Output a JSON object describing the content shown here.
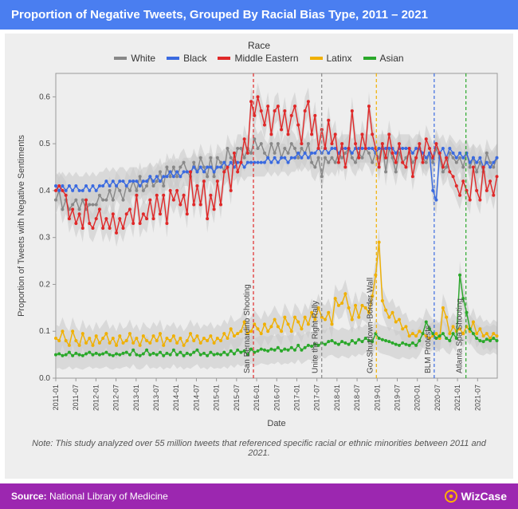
{
  "header": {
    "title": "Proportion of Negative Tweets, Grouped By Racial Bias Type, 2011 – 2021"
  },
  "legend": {
    "title": "Race",
    "items": [
      {
        "label": "White",
        "color": "#888888"
      },
      {
        "label": "Black",
        "color": "#3a6ae0"
      },
      {
        "label": "Middle Eastern",
        "color": "#e02828"
      },
      {
        "label": "Latinx",
        "color": "#f0b000"
      },
      {
        "label": "Asian",
        "color": "#2aa82a"
      }
    ]
  },
  "chart": {
    "type": "line-scatter",
    "background_color": "#eeeeee",
    "plot_bg": "#eeeeee",
    "band_color": "#c9c9c9",
    "band_opacity": 0.55,
    "grid_border": "#999999",
    "xlabel": "Date",
    "ylabel": "Proportion of Tweets with Negative Sentiments",
    "label_fontsize": 11,
    "ylim": [
      0.0,
      0.65
    ],
    "yticks": [
      0.0,
      0.1,
      0.2,
      0.3,
      0.4,
      0.5,
      0.6
    ],
    "x_start": 2011.0,
    "x_end": 2021.99,
    "xtick_dates": [
      "2011-01",
      "2011-07",
      "2012-01",
      "2012-07",
      "2013-01",
      "2013-07",
      "2014-01",
      "2014-07",
      "2015-01",
      "2015-07",
      "2016-01",
      "2016-07",
      "2017-01",
      "2017-07",
      "2018-01",
      "2018-07",
      "2019-01",
      "2019-07",
      "2020-01",
      "2020-07",
      "2021-01",
      "2021-07"
    ],
    "xtick_vals": [
      2011.0,
      2011.5,
      2012.0,
      2012.5,
      2013.0,
      2013.5,
      2014.0,
      2014.5,
      2015.0,
      2015.5,
      2016.0,
      2016.5,
      2017.0,
      2017.5,
      2018.0,
      2018.5,
      2019.0,
      2019.5,
      2020.0,
      2020.5,
      2021.0,
      2021.5
    ],
    "marker_radius": 2.0,
    "line_width": 1.4,
    "band_halfwidth": 0.03,
    "series": {
      "white": {
        "color": "#888888",
        "y": [
          0.38,
          0.4,
          0.36,
          0.38,
          0.36,
          0.37,
          0.38,
          0.36,
          0.38,
          0.36,
          0.37,
          0.37,
          0.37,
          0.39,
          0.38,
          0.38,
          0.4,
          0.38,
          0.41,
          0.4,
          0.38,
          0.41,
          0.4,
          0.42,
          0.4,
          0.43,
          0.4,
          0.41,
          0.43,
          0.41,
          0.42,
          0.44,
          0.41,
          0.45,
          0.43,
          0.45,
          0.43,
          0.45,
          0.46,
          0.44,
          0.43,
          0.46,
          0.44,
          0.47,
          0.45,
          0.43,
          0.47,
          0.43,
          0.47,
          0.46,
          0.44,
          0.49,
          0.47,
          0.46,
          0.49,
          0.49,
          0.47,
          0.49,
          0.48,
          0.51,
          0.49,
          0.5,
          0.48,
          0.47,
          0.5,
          0.48,
          0.5,
          0.47,
          0.49,
          0.48,
          0.5,
          0.49,
          0.47,
          0.49,
          0.48,
          0.5,
          0.46,
          0.45,
          0.47,
          0.43,
          0.47,
          0.46,
          0.47,
          0.46,
          0.48,
          0.47,
          0.48,
          0.49,
          0.47,
          0.46,
          0.48,
          0.47,
          0.49,
          0.48,
          0.46,
          0.48,
          0.47,
          0.5,
          0.44,
          0.49,
          0.47,
          0.44,
          0.48,
          0.46,
          0.47,
          0.48,
          0.46,
          0.47,
          0.49,
          0.47,
          0.46,
          0.48,
          0.46,
          0.49,
          0.47,
          0.44,
          0.45,
          0.48,
          0.47,
          0.46,
          0.47,
          0.45,
          0.48,
          0.45,
          0.47,
          0.44,
          0.46,
          0.44,
          0.48,
          0.46,
          0.45,
          0.47
        ]
      },
      "black": {
        "color": "#3a6ae0",
        "y": [
          0.41,
          0.4,
          0.41,
          0.4,
          0.41,
          0.4,
          0.41,
          0.4,
          0.4,
          0.41,
          0.4,
          0.41,
          0.4,
          0.41,
          0.41,
          0.42,
          0.41,
          0.42,
          0.41,
          0.42,
          0.42,
          0.41,
          0.42,
          0.42,
          0.42,
          0.41,
          0.42,
          0.42,
          0.43,
          0.42,
          0.43,
          0.42,
          0.43,
          0.43,
          0.44,
          0.43,
          0.44,
          0.43,
          0.44,
          0.44,
          0.44,
          0.45,
          0.44,
          0.45,
          0.44,
          0.45,
          0.45,
          0.44,
          0.45,
          0.45,
          0.46,
          0.45,
          0.46,
          0.45,
          0.46,
          0.46,
          0.45,
          0.46,
          0.46,
          0.46,
          0.46,
          0.46,
          0.46,
          0.47,
          0.46,
          0.47,
          0.46,
          0.47,
          0.47,
          0.46,
          0.47,
          0.47,
          0.48,
          0.47,
          0.48,
          0.47,
          0.48,
          0.48,
          0.49,
          0.48,
          0.49,
          0.48,
          0.49,
          0.49,
          0.48,
          0.49,
          0.49,
          0.49,
          0.48,
          0.49,
          0.49,
          0.49,
          0.49,
          0.49,
          0.49,
          0.48,
          0.49,
          0.49,
          0.49,
          0.49,
          0.49,
          0.48,
          0.49,
          0.49,
          0.49,
          0.49,
          0.48,
          0.49,
          0.49,
          0.48,
          0.47,
          0.48,
          0.4,
          0.38,
          0.48,
          0.49,
          0.47,
          0.49,
          0.48,
          0.47,
          0.48,
          0.47,
          0.48,
          0.46,
          0.47,
          0.46,
          0.47,
          0.45,
          0.46,
          0.45,
          0.46,
          0.47
        ]
      },
      "middle_eastern": {
        "color": "#e02828",
        "y": [
          0.4,
          0.41,
          0.4,
          0.39,
          0.34,
          0.36,
          0.33,
          0.35,
          0.32,
          0.38,
          0.33,
          0.32,
          0.34,
          0.36,
          0.32,
          0.34,
          0.32,
          0.35,
          0.31,
          0.34,
          0.32,
          0.35,
          0.36,
          0.33,
          0.39,
          0.33,
          0.35,
          0.34,
          0.38,
          0.34,
          0.39,
          0.35,
          0.39,
          0.33,
          0.4,
          0.38,
          0.4,
          0.37,
          0.39,
          0.35,
          0.44,
          0.37,
          0.41,
          0.37,
          0.42,
          0.34,
          0.39,
          0.36,
          0.42,
          0.37,
          0.44,
          0.45,
          0.4,
          0.48,
          0.44,
          0.46,
          0.51,
          0.48,
          0.59,
          0.56,
          0.6,
          0.57,
          0.54,
          0.58,
          0.52,
          0.57,
          0.58,
          0.53,
          0.57,
          0.52,
          0.56,
          0.58,
          0.54,
          0.5,
          0.57,
          0.59,
          0.52,
          0.56,
          0.49,
          0.53,
          0.49,
          0.55,
          0.5,
          0.52,
          0.46,
          0.5,
          0.45,
          0.49,
          0.57,
          0.5,
          0.47,
          0.52,
          0.49,
          0.58,
          0.52,
          0.49,
          0.45,
          0.5,
          0.47,
          0.52,
          0.48,
          0.46,
          0.5,
          0.46,
          0.45,
          0.49,
          0.43,
          0.47,
          0.5,
          0.46,
          0.51,
          0.49,
          0.47,
          0.5,
          0.48,
          0.45,
          0.47,
          0.44,
          0.43,
          0.41,
          0.39,
          0.42,
          0.4,
          0.38,
          0.45,
          0.4,
          0.38,
          0.45,
          0.4,
          0.42,
          0.39,
          0.43
        ]
      },
      "latinx": {
        "color": "#f0b000",
        "y": [
          0.085,
          0.08,
          0.1,
          0.08,
          0.07,
          0.1,
          0.08,
          0.07,
          0.095,
          0.075,
          0.085,
          0.07,
          0.09,
          0.075,
          0.085,
          0.095,
          0.075,
          0.085,
          0.07,
          0.09,
          0.075,
          0.08,
          0.095,
          0.075,
          0.085,
          0.07,
          0.09,
          0.08,
          0.075,
          0.09,
          0.08,
          0.095,
          0.07,
          0.085,
          0.08,
          0.09,
          0.075,
          0.085,
          0.07,
          0.08,
          0.095,
          0.08,
          0.09,
          0.075,
          0.085,
          0.08,
          0.09,
          0.075,
          0.085,
          0.08,
          0.095,
          0.085,
          0.105,
          0.09,
          0.095,
          0.1,
          0.12,
          0.095,
          0.1,
          0.115,
          0.105,
          0.095,
          0.115,
          0.1,
          0.11,
          0.125,
          0.11,
          0.1,
          0.13,
          0.115,
          0.1,
          0.13,
          0.12,
          0.105,
          0.13,
          0.115,
          0.14,
          0.125,
          0.15,
          0.13,
          0.125,
          0.14,
          0.115,
          0.17,
          0.155,
          0.16,
          0.18,
          0.15,
          0.125,
          0.155,
          0.13,
          0.155,
          0.15,
          0.14,
          0.175,
          0.22,
          0.29,
          0.165,
          0.145,
          0.13,
          0.14,
          0.12,
          0.125,
          0.105,
          0.11,
          0.09,
          0.095,
          0.09,
          0.1,
          0.095,
          0.09,
          0.085,
          0.09,
          0.095,
          0.085,
          0.15,
          0.13,
          0.095,
          0.11,
          0.1,
          0.105,
          0.095,
          0.11,
          0.1,
          0.12,
          0.095,
          0.105,
          0.09,
          0.095,
          0.085,
          0.095,
          0.09
        ]
      },
      "asian": {
        "color": "#2aa82a",
        "y": [
          0.05,
          0.052,
          0.048,
          0.05,
          0.055,
          0.048,
          0.053,
          0.05,
          0.048,
          0.052,
          0.055,
          0.05,
          0.053,
          0.05,
          0.052,
          0.055,
          0.05,
          0.048,
          0.052,
          0.05,
          0.053,
          0.055,
          0.05,
          0.06,
          0.05,
          0.048,
          0.052,
          0.06,
          0.05,
          0.053,
          0.05,
          0.055,
          0.048,
          0.053,
          0.05,
          0.06,
          0.05,
          0.055,
          0.048,
          0.053,
          0.05,
          0.055,
          0.06,
          0.05,
          0.053,
          0.048,
          0.055,
          0.05,
          0.052,
          0.05,
          0.055,
          0.05,
          0.058,
          0.052,
          0.06,
          0.055,
          0.058,
          0.05,
          0.062,
          0.055,
          0.058,
          0.062,
          0.06,
          0.058,
          0.062,
          0.06,
          0.065,
          0.058,
          0.062,
          0.06,
          0.065,
          0.06,
          0.07,
          0.06,
          0.065,
          0.07,
          0.068,
          0.072,
          0.07,
          0.075,
          0.072,
          0.078,
          0.08,
          0.075,
          0.072,
          0.078,
          0.075,
          0.072,
          0.08,
          0.075,
          0.082,
          0.078,
          0.085,
          0.08,
          0.078,
          0.095,
          0.085,
          0.082,
          0.08,
          0.078,
          0.075,
          0.072,
          0.07,
          0.075,
          0.072,
          0.07,
          0.075,
          0.07,
          0.08,
          0.095,
          0.12,
          0.105,
          0.095,
          0.085,
          0.09,
          0.095,
          0.085,
          0.08,
          0.095,
          0.085,
          0.22,
          0.17,
          0.14,
          0.105,
          0.095,
          0.085,
          0.08,
          0.078,
          0.083,
          0.08,
          0.085,
          0.08
        ]
      }
    },
    "events": [
      {
        "label": "San Bernardino Shooting",
        "x": 2015.92,
        "color": "#e02828"
      },
      {
        "label": "Unite the Right Rally",
        "x": 2017.62,
        "color": "#888888"
      },
      {
        "label": "Gov.Shutdown-Border Wall",
        "x": 2018.98,
        "color": "#f0b000"
      },
      {
        "label": "BLM Protests",
        "x": 2020.42,
        "color": "#3a6ae0"
      },
      {
        "label": "Atlanta Spa Shooting",
        "x": 2021.21,
        "color": "#2aa82a"
      }
    ]
  },
  "note": {
    "text": "Note: This study analyzed over 55 million tweets that referenced specific racial or ethnic minorities between 2011 and 2021."
  },
  "footer": {
    "source_label": "Source:",
    "source_value": "National Library of Medicine",
    "brand": "WizCase",
    "brand_icon_color": "#ffb000",
    "footer_bg": "#9c27b0"
  }
}
